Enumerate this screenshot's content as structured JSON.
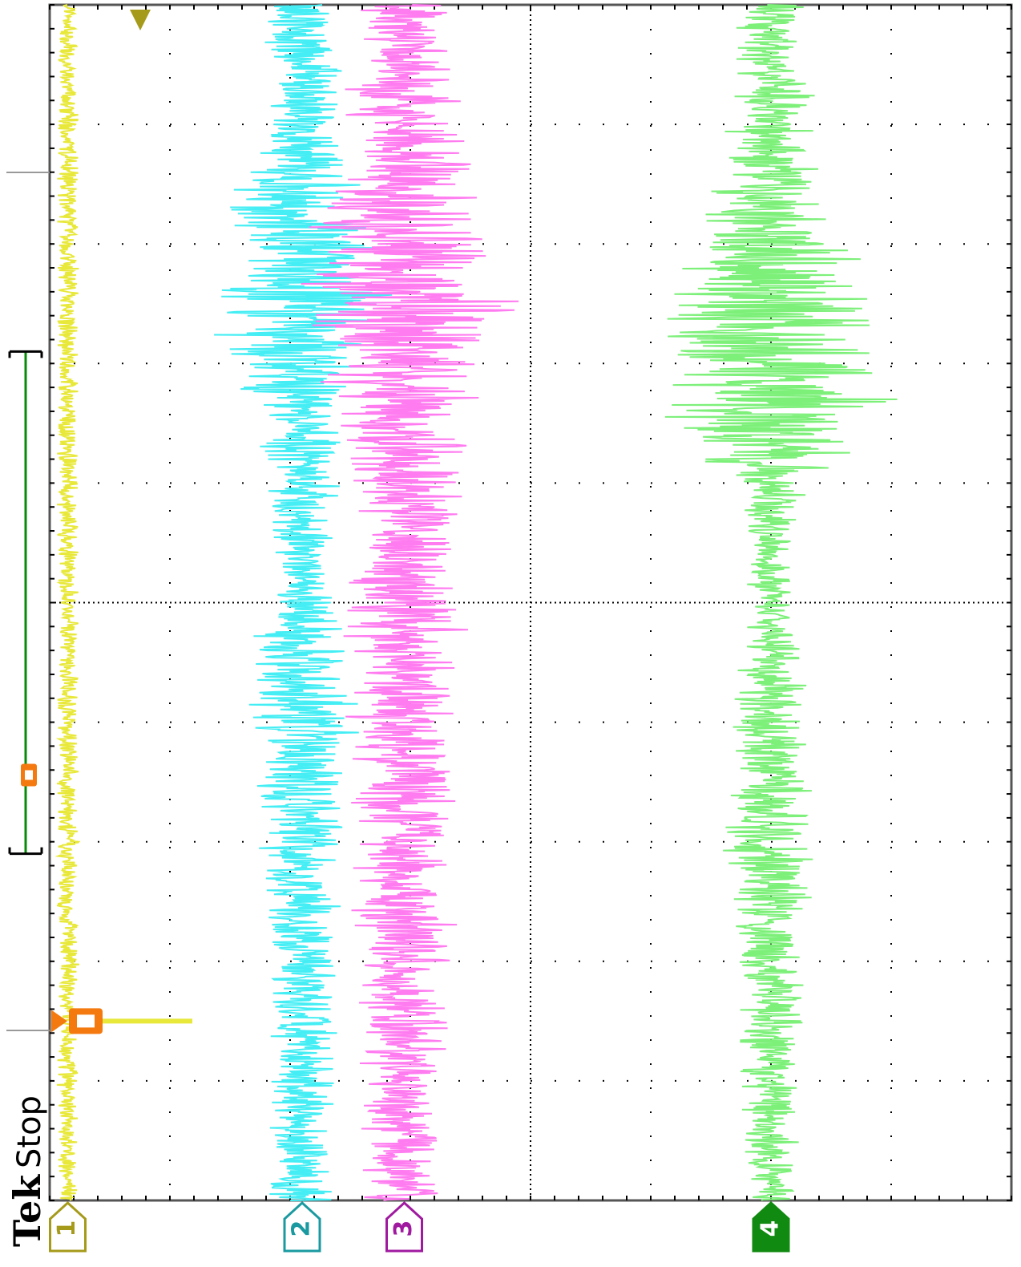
{
  "brand": "Tek",
  "acquisition_status": "Stop",
  "colors": {
    "ch1": "#e8e83a",
    "ch2": "#44eef4",
    "ch3": "#ff7cf0",
    "ch4": "#7df07a",
    "ch4_marker": "#108a10",
    "ch1_marker": "#a59a1a",
    "ch2_marker": "#1a9aa0",
    "ch3_marker": "#a01aa0",
    "trigger": "#f47a10",
    "trigger_level": "#a59a1a",
    "grid": "#000000",
    "record_bar": "#0a8a0a"
  },
  "chart_data": {
    "type": "line",
    "title": "",
    "xlabel": "",
    "ylabel": "",
    "orientation": "rotated-90",
    "grid": true,
    "divisions": {
      "time": 10,
      "vertical": 8
    },
    "time_range_div": [
      0,
      10
    ],
    "series": [
      {
        "name": "1",
        "center_div": 0.15,
        "noise_envelope_div": [
          [
            0,
            0.1
          ],
          [
            10,
            0.1
          ]
        ]
      },
      {
        "name": "2",
        "center_div": 2.1,
        "noise_envelope_div": [
          [
            0,
            0.3
          ],
          [
            2.5,
            0.35
          ],
          [
            4.5,
            0.55
          ],
          [
            5.2,
            0.25
          ],
          [
            6.5,
            0.4
          ],
          [
            7.5,
            0.9
          ],
          [
            8.5,
            0.6
          ],
          [
            9,
            0.35
          ],
          [
            10,
            0.35
          ]
        ]
      },
      {
        "name": "3",
        "center_div": 2.95,
        "noise_envelope_div": [
          [
            0,
            0.35
          ],
          [
            2.5,
            0.5
          ],
          [
            4.5,
            0.55
          ],
          [
            5.5,
            0.5
          ],
          [
            6.5,
            0.6
          ],
          [
            7.5,
            1.0
          ],
          [
            8.5,
            0.7
          ],
          [
            9.5,
            0.45
          ],
          [
            10,
            0.4
          ]
        ]
      },
      {
        "name": "4",
        "center_div": 6.0,
        "noise_envelope_div": [
          [
            0,
            0.25
          ],
          [
            2,
            0.3
          ],
          [
            3.4,
            0.5
          ],
          [
            5,
            0.2
          ],
          [
            6,
            0.3
          ],
          [
            6.5,
            1.2
          ],
          [
            7.5,
            1.0
          ],
          [
            7.9,
            0.9
          ],
          [
            8.5,
            0.5
          ],
          [
            10,
            0.3
          ]
        ]
      }
    ],
    "channel_markers": [
      "1",
      "2",
      "3",
      "4"
    ],
    "trigger_position_div": 1.5,
    "trigger_level_marker": "T",
    "record_window_div": [
      2.9,
      7.1
    ]
  }
}
